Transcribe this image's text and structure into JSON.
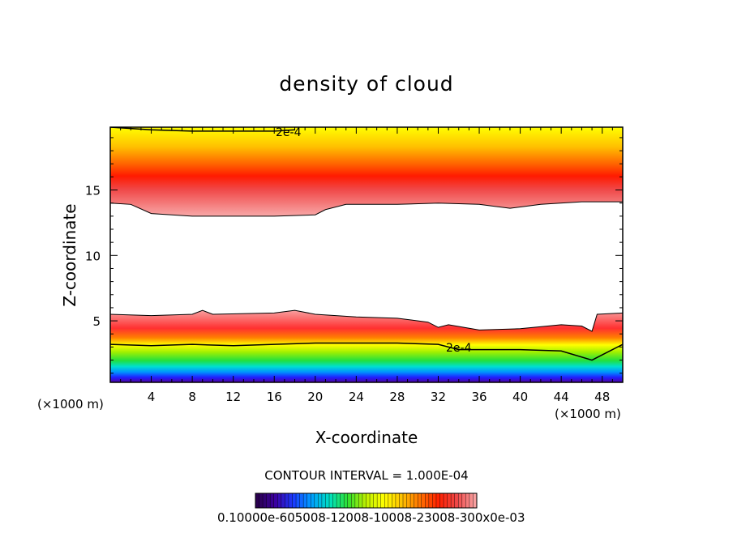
{
  "chart_data": {
    "type": "heatmap",
    "title": "density of cloud",
    "xlabel": "X-coordinate",
    "ylabel": "Z-coordinate",
    "x_unit": "(×1000 m)",
    "xlim": [
      0,
      50
    ],
    "ylim": [
      0.3,
      19.8
    ],
    "x_ticks": [
      4,
      8,
      12,
      16,
      20,
      24,
      28,
      32,
      36,
      40,
      44,
      48
    ],
    "y_ticks": [
      5,
      10,
      15
    ],
    "contour_interval_text": "CONTOUR INTERVAL = 1.000E-04",
    "contour_labels": [
      "2e-4",
      "2e-4"
    ],
    "colorbar_label_text": "0.10000e-605008-12008-10008-23008-300x0e-03",
    "colorbar_colors": [
      "#2a0050",
      "#3c00a0",
      "#1a3cff",
      "#00a0ff",
      "#00e0c0",
      "#30e030",
      "#c0f000",
      "#ffff00",
      "#ffc000",
      "#ff7000",
      "#ff2000",
      "#f04848",
      "#f8a0a0"
    ],
    "upper_layer": {
      "boundary_z": [
        [
          0,
          14.0
        ],
        [
          2,
          13.9
        ],
        [
          4,
          13.2
        ],
        [
          8,
          13.0
        ],
        [
          12,
          13.0
        ],
        [
          16,
          13.0
        ],
        [
          20,
          13.1
        ],
        [
          21,
          13.5
        ],
        [
          23,
          13.9
        ],
        [
          28,
          13.9
        ],
        [
          32,
          14.0
        ],
        [
          36,
          13.9
        ],
        [
          39,
          13.6
        ],
        [
          42,
          13.9
        ],
        [
          46,
          14.1
        ],
        [
          50,
          14.1
        ]
      ],
      "peak_z": 15.8,
      "top_z": 19.8,
      "contour_2e4_z": [
        [
          0,
          19.8
        ],
        [
          4,
          19.6
        ],
        [
          8,
          19.5
        ],
        [
          12,
          19.5
        ],
        [
          16,
          19.5
        ],
        [
          18,
          19.6
        ]
      ]
    },
    "lower_layer": {
      "top_z": [
        [
          0,
          5.5
        ],
        [
          4,
          5.4
        ],
        [
          8,
          5.5
        ],
        [
          9,
          5.8
        ],
        [
          10,
          5.5
        ],
        [
          16,
          5.6
        ],
        [
          18,
          5.8
        ],
        [
          20,
          5.5
        ],
        [
          24,
          5.3
        ],
        [
          28,
          5.2
        ],
        [
          31,
          4.9
        ],
        [
          32,
          4.5
        ],
        [
          33,
          4.7
        ],
        [
          36,
          4.3
        ],
        [
          40,
          4.4
        ],
        [
          44,
          4.7
        ],
        [
          46,
          4.6
        ],
        [
          47,
          4.2
        ],
        [
          47.5,
          5.5
        ],
        [
          50,
          5.6
        ]
      ],
      "contour_2e4_z": [
        [
          0,
          3.2
        ],
        [
          4,
          3.1
        ],
        [
          8,
          3.2
        ],
        [
          12,
          3.1
        ],
        [
          16,
          3.2
        ],
        [
          20,
          3.3
        ],
        [
          24,
          3.3
        ],
        [
          28,
          3.3
        ],
        [
          32,
          3.2
        ],
        [
          34,
          2.8
        ],
        [
          40,
          2.8
        ],
        [
          44,
          2.7
        ],
        [
          47,
          2.0
        ],
        [
          48,
          2.4
        ],
        [
          50,
          3.2
        ]
      ],
      "green_z": 2.4,
      "blue_z": 1.4,
      "bottom_z": 0.3
    }
  }
}
